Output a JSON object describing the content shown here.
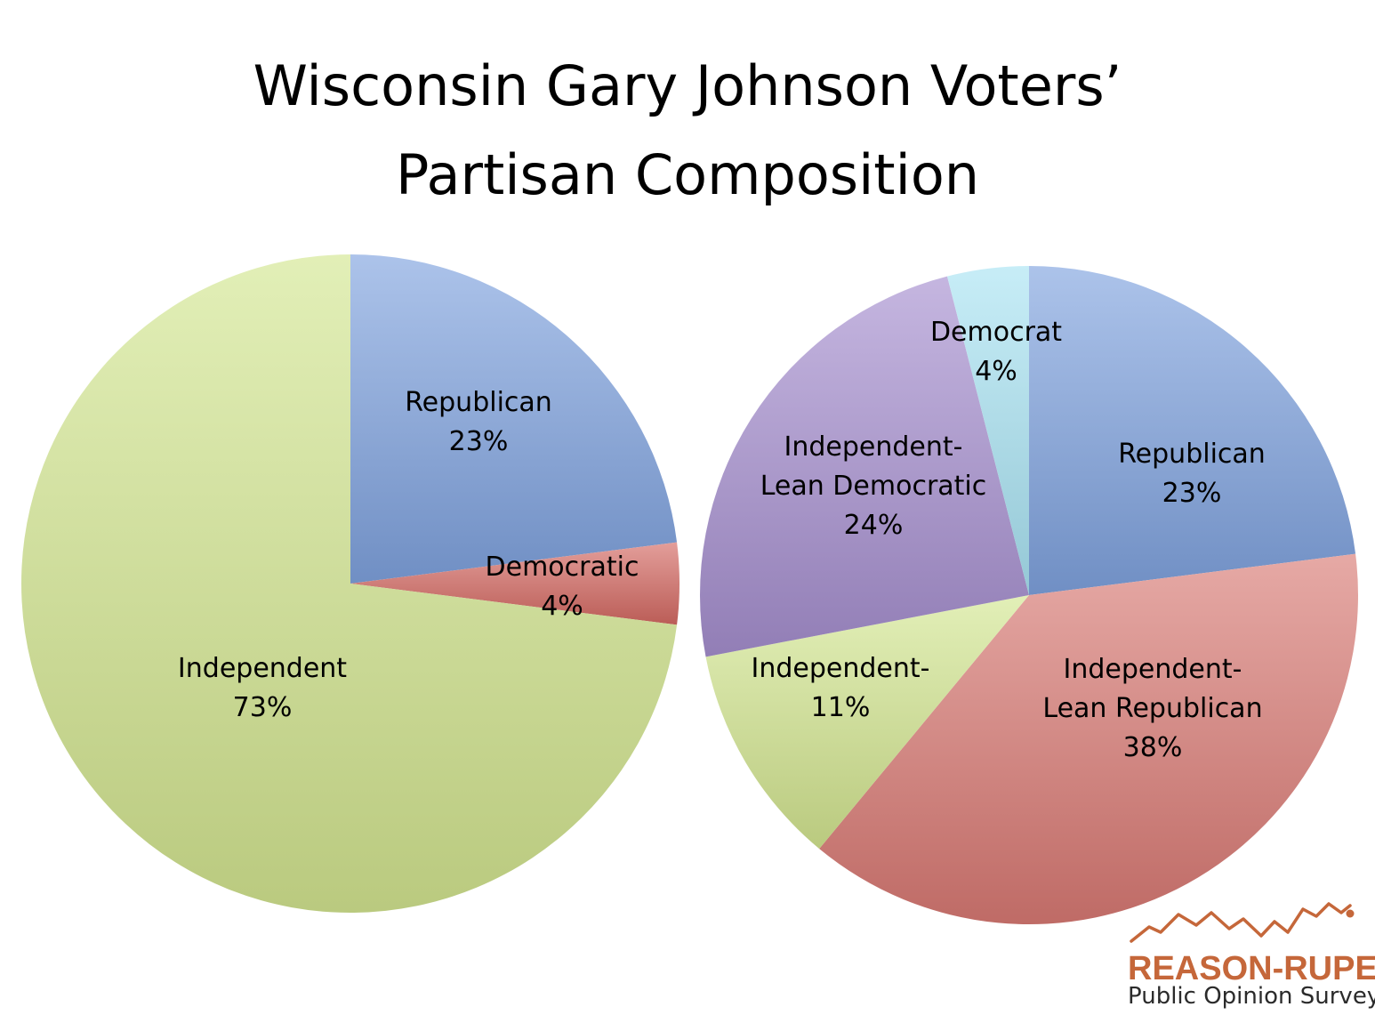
{
  "title_lines": [
    "Wisconsin Gary Johnson Voters’",
    "Partisan Composition"
  ],
  "logo": {
    "name": "REASON-RUPE",
    "tagline": "Public Opinion Survey",
    "color": "#c5673a"
  },
  "chart_data": [
    {
      "type": "pie",
      "slices": [
        {
          "label": "Republican",
          "value": 23,
          "value_label": "23%",
          "color": "#7fa3df"
        },
        {
          "label": "Democratic",
          "value": 4,
          "value_label": "4%",
          "color": "#d46a63"
        },
        {
          "label": "Independent",
          "value": 73,
          "value_label": "73%",
          "color": "#d3e690"
        }
      ]
    },
    {
      "type": "pie",
      "slices": [
        {
          "label": "Republican",
          "value": 23,
          "value_label": "23%",
          "color": "#7fa3df"
        },
        {
          "label": "Independent-\nLean Republican",
          "value": 38,
          "value_label": "38%",
          "color": "#d97a74"
        },
        {
          "label": "Independent-",
          "value": 11,
          "value_label": "11%",
          "color": "#d3e690"
        },
        {
          "label": "Independent-\nLean Democratic",
          "value": 24,
          "value_label": "24%",
          "color": "#a68fcf"
        },
        {
          "label": "Democrat",
          "value": 4,
          "value_label": "4%",
          "color": "#a9e3f3"
        }
      ]
    }
  ]
}
